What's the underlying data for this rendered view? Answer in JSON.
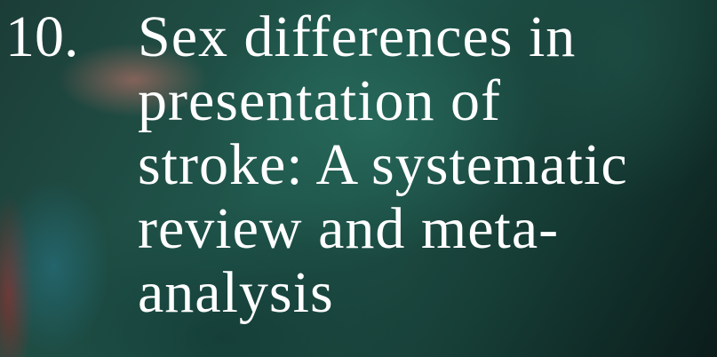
{
  "item": {
    "number": "10.",
    "title_lines": [
      "Sex differences in",
      "presentation of",
      "stroke: A systematic",
      "review and meta-",
      "analysis"
    ]
  }
}
